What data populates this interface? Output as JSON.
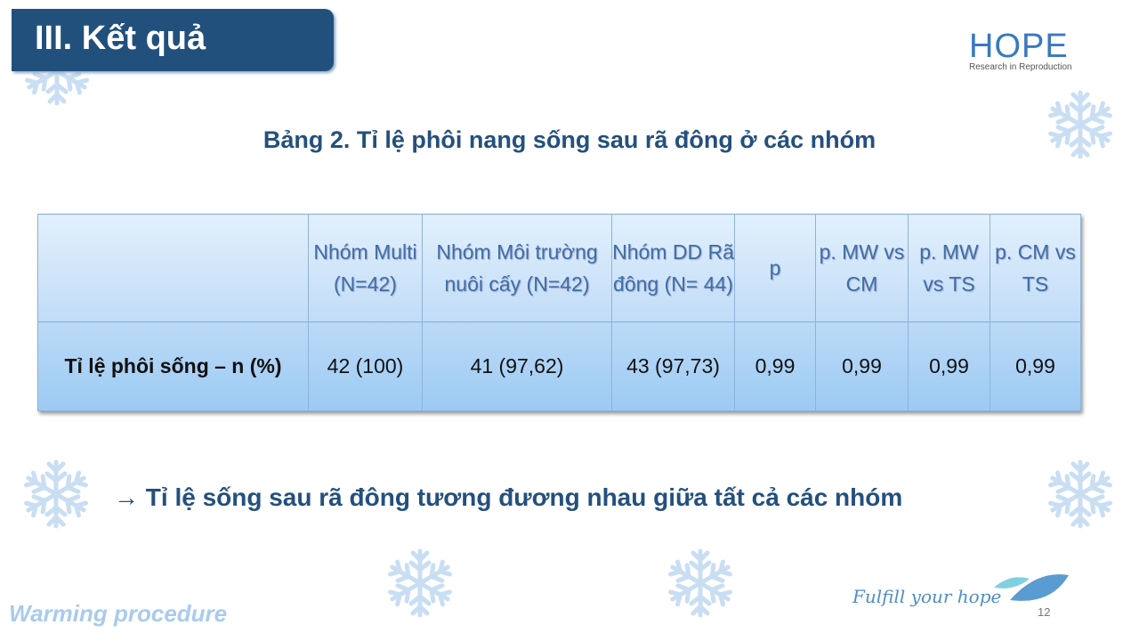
{
  "slide": {
    "title": "III. Kết quả",
    "logo": {
      "name": "HOPE",
      "tagline": "Research in Reproduction"
    },
    "heading": "Bảng 2. Tỉ lệ phôi nang sống sau rã đông ở các nhóm",
    "table": {
      "headers": [
        "",
        "Nhóm Multi (N=42)",
        "Nhóm Môi trường nuôi cấy (N=42)",
        "Nhóm DD Rã đông (N= 44)",
        "p",
        "p. MW vs CM",
        "p. MW vs TS",
        "p. CM vs TS"
      ],
      "rows": [
        [
          "Tỉ lệ phôi sống – n (%)",
          "42 (100)",
          "41 (97,62)",
          "43 (97,73)",
          "0,99",
          "0,99",
          "0,99",
          "0,99"
        ]
      ]
    },
    "conclusion": "→ Tỉ lệ sống sau rã đông tương đương nhau giữa tất cả các nhóm",
    "footer_left": "Warming procedure",
    "footer_tagline": "Fulfill your hope",
    "page_number": "12"
  },
  "colors": {
    "title_bg": "#21507c",
    "heading": "#24507d",
    "table_header_text": "#3d6fa6"
  }
}
